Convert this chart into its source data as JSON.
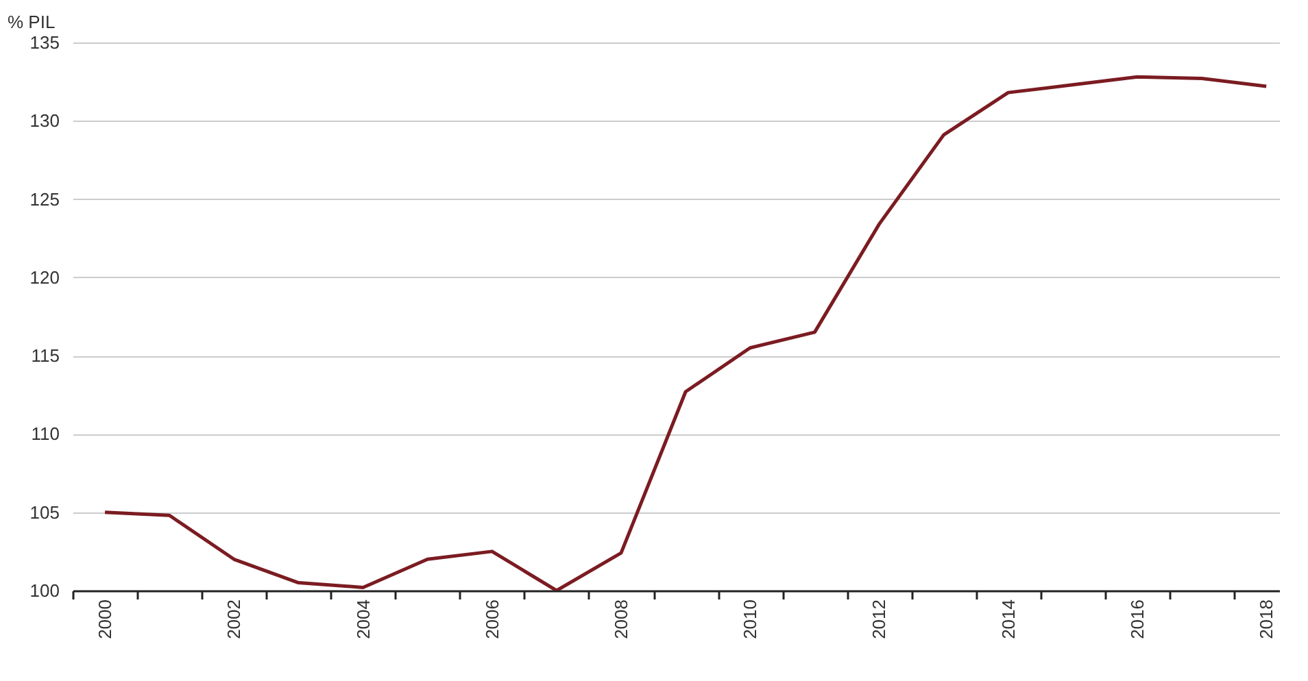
{
  "chart_data": {
    "type": "line",
    "ylabel": "% PIL",
    "x": [
      2000,
      2001,
      2002,
      2003,
      2004,
      2005,
      2006,
      2007,
      2008,
      2009,
      2010,
      2011,
      2012,
      2013,
      2014,
      2015,
      2016,
      2017,
      2018
    ],
    "series": [
      {
        "color": "#7b1c22",
        "values": [
          105.0,
          104.8,
          102.0,
          100.5,
          100.2,
          102.0,
          102.5,
          100.0,
          102.4,
          112.7,
          115.5,
          116.5,
          123.4,
          129.1,
          131.8,
          132.3,
          132.8,
          132.7,
          132.2
        ]
      }
    ],
    "xlim": [
      1999.5,
      2018.2
    ],
    "xticks": [
      {
        "value": 1999.5,
        "label": null
      },
      2000,
      {
        "value": 2000.5,
        "label": null
      },
      {
        "value": 2001.5,
        "label": null
      },
      2002,
      {
        "value": 2002.5,
        "label": null
      },
      {
        "value": 2003.5,
        "label": null
      },
      2004,
      {
        "value": 2004.5,
        "label": null
      },
      {
        "value": 2005.5,
        "label": null
      },
      2006,
      {
        "value": 2006.5,
        "label": null
      },
      {
        "value": 2007.5,
        "label": null
      },
      2008,
      {
        "value": 2008.5,
        "label": null
      },
      {
        "value": 2009.5,
        "label": null
      },
      2010,
      {
        "value": 2010.5,
        "label": null
      },
      {
        "value": 2011.5,
        "label": null
      },
      2012,
      {
        "value": 2012.5,
        "label": null
      },
      {
        "value": 2013.5,
        "label": null
      },
      2014,
      {
        "value": 2014.5,
        "label": null
      },
      {
        "value": 2015.5,
        "label": null
      },
      2016,
      {
        "value": 2016.5,
        "label": null
      },
      {
        "value": 2017.5,
        "label": null
      },
      2018
    ],
    "ylim": [
      100,
      135
    ],
    "yticks": [
      100,
      105,
      110,
      115,
      120,
      125,
      130,
      135
    ],
    "grid": "y",
    "line_style": "solid",
    "marker": "none"
  }
}
